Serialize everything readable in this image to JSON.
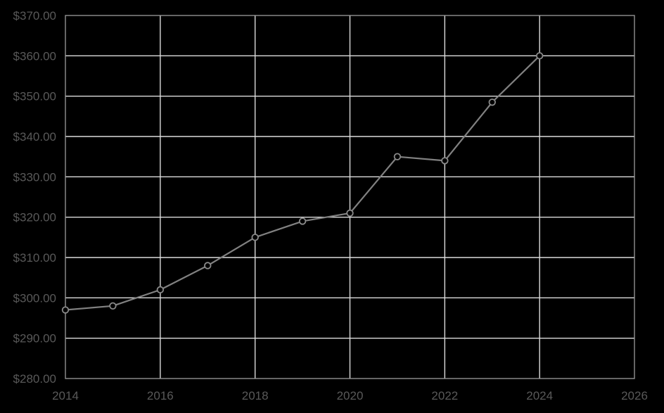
{
  "chart_data": {
    "type": "line",
    "title": "",
    "xlabel": "",
    "ylabel": "",
    "x": [
      2014,
      2015,
      2016,
      2017,
      2018,
      2019,
      2020,
      2021,
      2022,
      2023,
      2024
    ],
    "series": [
      {
        "name": "price",
        "values": [
          297,
          298,
          302,
          308,
          315,
          319,
          321,
          335,
          334,
          348.5,
          360
        ]
      }
    ],
    "xlim": [
      2014,
      2026
    ],
    "ylim": [
      280,
      370
    ],
    "x_tick_values": [
      2014,
      2016,
      2018,
      2020,
      2022,
      2024,
      2026
    ],
    "x_tick_labels": [
      "2014",
      "2016",
      "2018",
      "2020",
      "2022",
      "2024",
      "2026"
    ],
    "y_tick_values": [
      280,
      290,
      300,
      310,
      320,
      330,
      340,
      350,
      360,
      370
    ],
    "y_tick_labels": [
      "$280.00",
      "$290.00",
      "$300.00",
      "$310.00",
      "$320.00",
      "$330.00",
      "$340.00",
      "$350.00",
      "$360.00",
      "$370.00"
    ],
    "grid": true,
    "legend": false,
    "marker": "circle-open"
  },
  "colors": {
    "background": "#000000",
    "plot_border": "#9c9c9c",
    "gridline": "#dcdcdc",
    "series_line": "#818181",
    "marker_fill": "#000000",
    "marker_stroke": "#8a8a8a",
    "axis_text": "#595959"
  }
}
